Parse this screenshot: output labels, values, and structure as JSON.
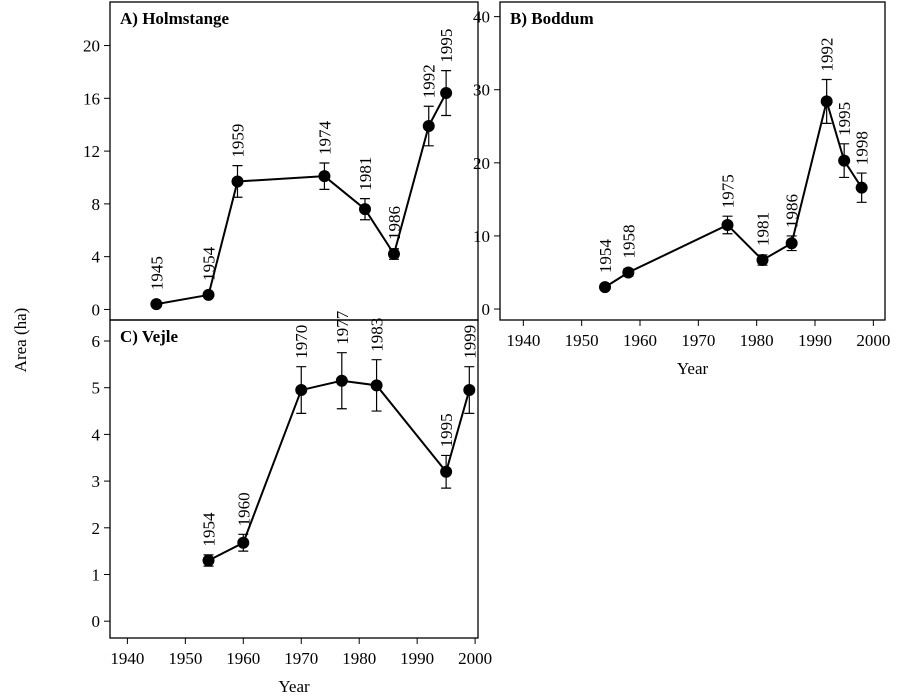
{
  "ylabel": "Area (ha)",
  "chart_data": [
    {
      "type": "line",
      "title": "A) Holmstange",
      "x": [
        1945,
        1954,
        1959,
        1974,
        1981,
        1986,
        1992,
        1995
      ],
      "values": [
        0.4,
        1.1,
        9.7,
        10.1,
        7.6,
        4.2,
        13.9,
        16.4
      ],
      "errors": [
        0.1,
        0.1,
        1.2,
        1.0,
        0.8,
        0.4,
        1.5,
        1.7
      ],
      "color": "#000000",
      "xlim": [
        1937,
        2000.5
      ],
      "ylim": [
        -0.8,
        23.3
      ],
      "yticks": [
        0,
        4,
        8,
        12,
        16,
        20
      ]
    },
    {
      "type": "line",
      "title": "B) Boddum",
      "xlabel": "Year",
      "x": [
        1954,
        1958,
        1975,
        1981,
        1986,
        1992,
        1995,
        1998
      ],
      "values": [
        3,
        5,
        11.5,
        6.7,
        9,
        28.4,
        20.3,
        16.6
      ],
      "errors": [
        0.3,
        0.5,
        1.2,
        0.7,
        1.0,
        3.0,
        2.3,
        2.0
      ],
      "color": "#000000",
      "xlim": [
        1936,
        2002
      ],
      "ylim": [
        -1.5,
        42
      ],
      "yticks": [
        0,
        10,
        20,
        30,
        40
      ],
      "xticks": [
        1940,
        1950,
        1960,
        1970,
        1980,
        1990,
        2000
      ]
    },
    {
      "type": "line",
      "title": "C) Vejle",
      "xlabel": "Year",
      "x": [
        1954,
        1960,
        1970,
        1977,
        1983,
        1995,
        1999
      ],
      "values": [
        1.3,
        1.68,
        4.95,
        5.15,
        5.05,
        3.2,
        4.95
      ],
      "errors": [
        0.12,
        0.18,
        0.5,
        0.6,
        0.55,
        0.35,
        0.5
      ],
      "color": "#000000",
      "xlim": [
        1937,
        2000.5
      ],
      "ylim": [
        -0.36,
        6.45
      ],
      "yticks": [
        0,
        1,
        2,
        3,
        4,
        5,
        6
      ],
      "xticks": [
        1940,
        1950,
        1960,
        1970,
        1980,
        1990,
        2000
      ]
    }
  ]
}
